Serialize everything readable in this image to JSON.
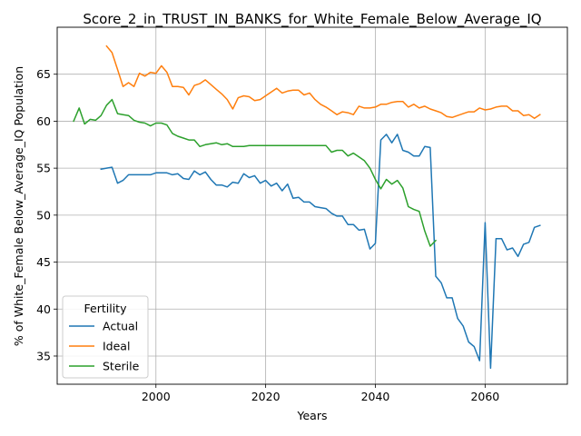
{
  "chart_data": {
    "type": "line",
    "title": "Score_2_in_TRUST_IN_BANKS_for_White_Female_Below_Average_IQ",
    "xlabel": "Years",
    "ylabel": "% of White_Female Below_Average_IQ Population",
    "xlim": [
      1982,
      2075
    ],
    "ylim": [
      32,
      70
    ],
    "xticks": [
      2000,
      2020,
      2040,
      2060
    ],
    "yticks": [
      35,
      40,
      45,
      50,
      55,
      60,
      65
    ],
    "grid": true,
    "legend": {
      "title": "Fertility",
      "placement": "lower-left"
    },
    "series": [
      {
        "name": "Actual",
        "color": "#1f77b4",
        "x": [
          1990,
          1991,
          1992,
          1993,
          1994,
          1995,
          1996,
          1997,
          1998,
          1999,
          2000,
          2001,
          2002,
          2003,
          2004,
          2005,
          2006,
          2007,
          2008,
          2009,
          2010,
          2011,
          2012,
          2013,
          2014,
          2015,
          2016,
          2017,
          2018,
          2019,
          2020,
          2021,
          2022,
          2023,
          2024,
          2025,
          2026,
          2027,
          2028,
          2029,
          2030,
          2031,
          2032,
          2033,
          2034,
          2035,
          2036,
          2037,
          2038,
          2039,
          2040,
          2041,
          2042,
          2043,
          2044,
          2045,
          2046,
          2047,
          2048,
          2049,
          2050,
          2051,
          2052,
          2053,
          2054,
          2055,
          2056,
          2057,
          2058,
          2059,
          2060,
          2061,
          2062,
          2063,
          2064,
          2065,
          2066,
          2067,
          2068,
          2069,
          2070
        ],
        "values": [
          54.9,
          55.0,
          55.1,
          53.4,
          53.7,
          54.3,
          54.3,
          54.3,
          54.3,
          54.3,
          54.5,
          54.5,
          54.5,
          54.3,
          54.4,
          53.9,
          53.8,
          54.7,
          54.3,
          54.6,
          53.8,
          53.2,
          53.2,
          53.0,
          53.5,
          53.4,
          54.4,
          54.0,
          54.2,
          53.4,
          53.7,
          53.1,
          53.4,
          52.6,
          53.3,
          51.8,
          51.9,
          51.4,
          51.4,
          50.9,
          50.8,
          50.7,
          50.2,
          49.9,
          49.9,
          49.0,
          49.0,
          48.4,
          48.5,
          46.4,
          47.0,
          58.0,
          58.6,
          57.7,
          58.6,
          56.9,
          56.7,
          56.3,
          56.3,
          57.3,
          57.2,
          43.5,
          42.8,
          41.2,
          41.2,
          39.0,
          38.2,
          36.5,
          36.0,
          34.5,
          49.2,
          33.7,
          47.5,
          47.5,
          46.3,
          46.5,
          45.6,
          46.9,
          47.1,
          48.7,
          48.9
        ]
      },
      {
        "name": "Ideal",
        "color": "#ff7f0e",
        "x": [
          1991,
          1992,
          1993,
          1994,
          1995,
          1996,
          1997,
          1998,
          1999,
          2000,
          2001,
          2002,
          2003,
          2004,
          2005,
          2006,
          2007,
          2008,
          2009,
          2010,
          2011,
          2012,
          2013,
          2014,
          2015,
          2016,
          2017,
          2018,
          2019,
          2020,
          2021,
          2022,
          2023,
          2024,
          2025,
          2026,
          2027,
          2028,
          2029,
          2030,
          2031,
          2032,
          2033,
          2034,
          2035,
          2036,
          2037,
          2038,
          2039,
          2040,
          2041,
          2042,
          2043,
          2044,
          2045,
          2046,
          2047,
          2048,
          2049,
          2050,
          2051,
          2052,
          2053,
          2054,
          2055,
          2056,
          2057,
          2058,
          2059,
          2060,
          2061,
          2062,
          2063,
          2064,
          2065,
          2066,
          2067,
          2068,
          2069,
          2070
        ],
        "values": [
          68.0,
          67.3,
          65.5,
          63.7,
          64.1,
          63.7,
          65.1,
          64.8,
          65.2,
          65.1,
          65.9,
          65.2,
          63.7,
          63.7,
          63.6,
          62.8,
          63.8,
          64.0,
          64.4,
          63.9,
          63.4,
          62.9,
          62.3,
          61.3,
          62.5,
          62.7,
          62.6,
          62.2,
          62.3,
          62.7,
          63.1,
          63.5,
          63.0,
          63.2,
          63.3,
          63.3,
          62.8,
          63.0,
          62.3,
          61.8,
          61.5,
          61.1,
          60.7,
          61.0,
          60.9,
          60.7,
          61.6,
          61.4,
          61.4,
          61.5,
          61.8,
          61.8,
          62.0,
          62.1,
          62.1,
          61.5,
          61.8,
          61.4,
          61.6,
          61.3,
          61.1,
          60.9,
          60.5,
          60.4,
          60.6,
          60.8,
          61.0,
          61.0,
          61.4,
          61.2,
          61.3,
          61.5,
          61.6,
          61.6,
          61.1,
          61.1,
          60.6,
          60.7,
          60.3,
          60.7
        ]
      },
      {
        "name": "Sterile",
        "color": "#2ca02c",
        "x": [
          1985,
          1986,
          1987,
          1988,
          1989,
          1990,
          1991,
          1992,
          1993,
          1994,
          1995,
          1996,
          1997,
          1998,
          1999,
          2000,
          2001,
          2002,
          2003,
          2004,
          2005,
          2006,
          2007,
          2008,
          2009,
          2010,
          2011,
          2012,
          2013,
          2014,
          2015,
          2016,
          2017,
          2018,
          2019,
          2020,
          2021,
          2022,
          2023,
          2024,
          2025,
          2026,
          2027,
          2028,
          2029,
          2030,
          2031,
          2032,
          2033,
          2034,
          2035,
          2036,
          2037,
          2038,
          2039,
          2040,
          2041,
          2042,
          2043,
          2044,
          2045,
          2046,
          2047,
          2048,
          2049,
          2050,
          2051
        ],
        "values": [
          60.0,
          61.4,
          59.7,
          60.2,
          60.1,
          60.6,
          61.7,
          62.3,
          60.8,
          60.7,
          60.6,
          60.1,
          59.9,
          59.8,
          59.5,
          59.8,
          59.8,
          59.6,
          58.7,
          58.4,
          58.2,
          58.0,
          58.0,
          57.3,
          57.5,
          57.6,
          57.7,
          57.5,
          57.6,
          57.3,
          57.3,
          57.3,
          57.4,
          57.4,
          57.4,
          57.4,
          57.4,
          57.4,
          57.4,
          57.4,
          57.4,
          57.4,
          57.4,
          57.4,
          57.4,
          57.4,
          57.4,
          56.7,
          56.9,
          56.9,
          56.3,
          56.6,
          56.2,
          55.8,
          55.0,
          53.8,
          52.8,
          53.8,
          53.3,
          53.7,
          52.9,
          50.9,
          50.6,
          50.4,
          48.3,
          46.7,
          47.3
        ]
      }
    ]
  }
}
